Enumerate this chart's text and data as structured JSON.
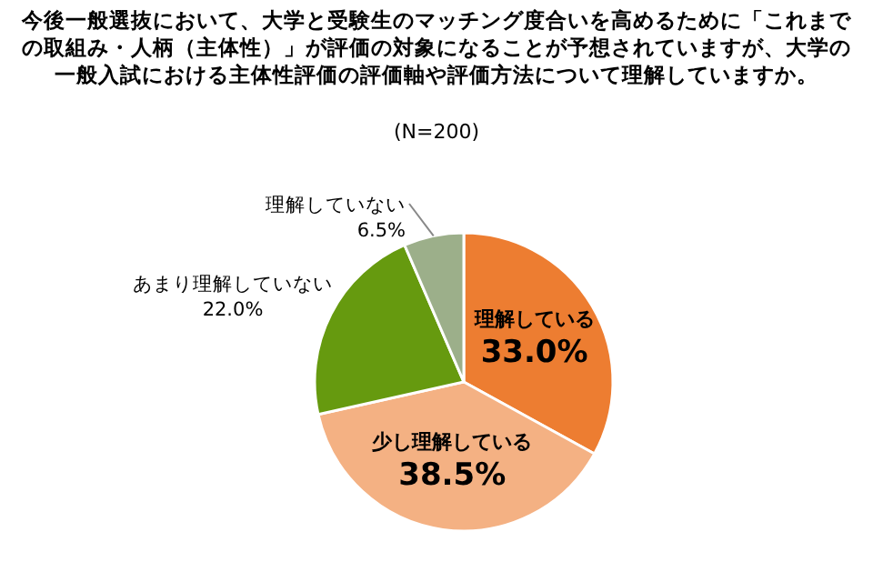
{
  "chart_data": {
    "type": "pie",
    "title": "今後一般選抜において、大学と受験生のマッチング度合いを高めるために「これまでの取組み・人柄（主体性）」が評価の対象になることが予想されていますが、大学の一般入試における主体性評価の評価軸や評価方法について理解していますか。",
    "subtitle": "(N=200)",
    "categories": [
      "理解している",
      "少し理解している",
      "あまり理解していない",
      "理解していない"
    ],
    "values": [
      33.0,
      38.5,
      22.0,
      6.5
    ],
    "value_labels": [
      "33.0%",
      "38.5%",
      "22.0%",
      "6.5%"
    ],
    "colors": [
      "#ed7d31",
      "#f4b183",
      "#669a0f",
      "#9caf8a"
    ]
  }
}
